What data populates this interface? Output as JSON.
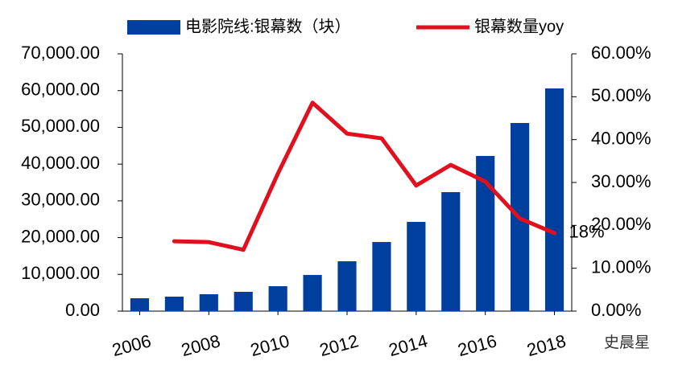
{
  "chart_data": {
    "type": "bar-line",
    "x": [
      2006,
      2007,
      2008,
      2009,
      2010,
      2011,
      2012,
      2013,
      2014,
      2015,
      2016,
      2017,
      2018
    ],
    "xlim": [
      2005.5,
      2018.5
    ],
    "xticks": [
      2006,
      2008,
      2010,
      2012,
      2014,
      2016,
      2018
    ],
    "ylim": [
      0,
      70000
    ],
    "yticks": [
      {
        "value": 0,
        "label": "0.00"
      },
      {
        "value": 10000,
        "label": "10,000.00"
      },
      {
        "value": 20000,
        "label": "20,000.00"
      },
      {
        "value": 30000,
        "label": "30,000.00"
      },
      {
        "value": 40000,
        "label": "40,000.00"
      },
      {
        "value": 50000,
        "label": "50,000.00"
      },
      {
        "value": 60000,
        "label": "60,000.00"
      },
      {
        "value": 70000,
        "label": "70,000.00"
      }
    ],
    "y2lim": [
      0,
      60
    ],
    "y2ticks": [
      {
        "value": 0,
        "label": "0.00%"
      },
      {
        "value": 10,
        "label": "10.00%"
      },
      {
        "value": 20,
        "label": "20.00%"
      },
      {
        "value": 30,
        "label": "30.00%"
      },
      {
        "value": 40,
        "label": "40.00%"
      },
      {
        "value": 50,
        "label": "50.00%"
      },
      {
        "value": 60,
        "label": "60.00%"
      }
    ],
    "series": [
      {
        "name": "电影院线:银幕数（块）",
        "type": "bar",
        "color": "#003f9e",
        "values": [
          3500,
          3940,
          4600,
          5250,
          6780,
          9840,
          13560,
          18810,
          24280,
          32380,
          42220,
          51190,
          60590
        ]
      },
      {
        "name": "银幕数量yoy",
        "type": "line",
        "axis": "y2",
        "color": "#e0101e",
        "values": [
          null,
          16.3,
          16.1,
          14.3,
          32.1,
          48.6,
          41.4,
          40.3,
          29.3,
          34.1,
          30.2,
          21.6,
          18.2
        ],
        "value_labels": [
          null,
          null,
          null,
          null,
          null,
          null,
          null,
          null,
          null,
          null,
          null,
          null,
          "18%"
        ]
      }
    ],
    "watermark": "史晨星"
  }
}
